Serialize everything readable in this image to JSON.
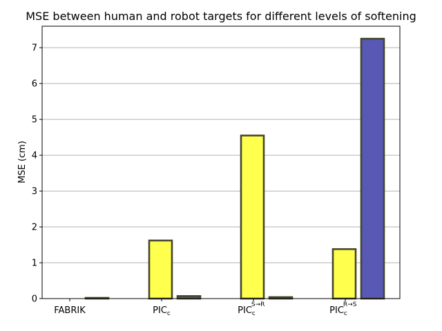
{
  "chart_data": {
    "type": "bar",
    "title": "MSE between human and robot targets for different levels of softening",
    "xlabel": "",
    "ylabel": "MSE (cm)",
    "categories": [
      {
        "base": "FABRIK",
        "sub": "",
        "sup": ""
      },
      {
        "base": "PIC",
        "sub": "c",
        "sup": ""
      },
      {
        "base": "PIC",
        "sub": "c",
        "sup": "S→R"
      },
      {
        "base": "PIC",
        "sub": "c",
        "sup": "R→S"
      }
    ],
    "series": [
      {
        "color": "#ffff4d",
        "values": [
          0.0,
          1.62,
          4.55,
          1.38
        ]
      },
      {
        "color": "#5858b5",
        "values": [
          0.02,
          0.07,
          0.04,
          7.25
        ]
      }
    ],
    "ylim": [
      0,
      7.6
    ],
    "yticks": [
      "0",
      "1",
      "2",
      "3",
      "4",
      "5",
      "6",
      "7"
    ],
    "grid": "y",
    "legend": "none",
    "bar_edge_color": "#45452d"
  }
}
